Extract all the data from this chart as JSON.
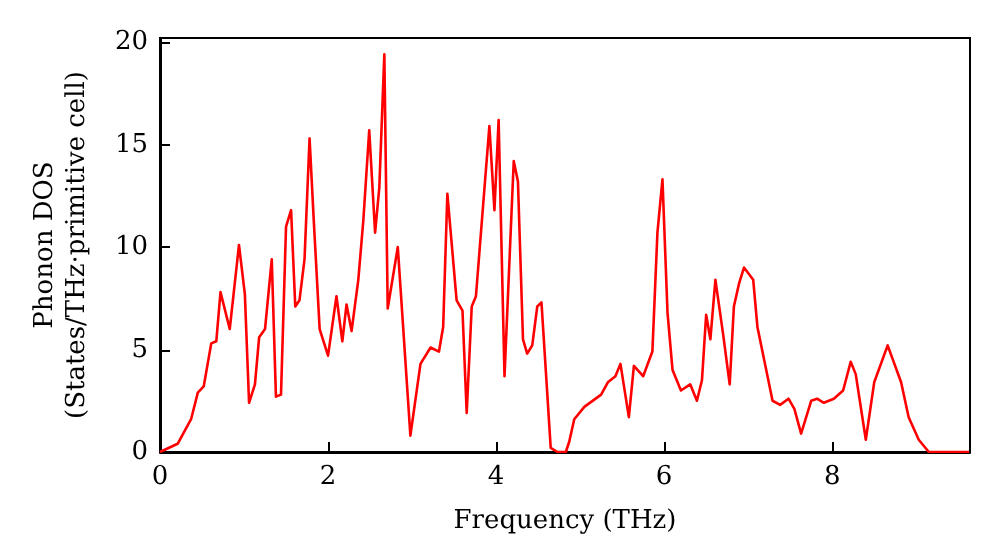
{
  "chart_data": {
    "type": "line",
    "xlabel": "Frequency (THz)",
    "ylabel": "Phonon DOS\n(States/THz·primitive cell)",
    "xlim": [
      0,
      9.64
    ],
    "ylim": [
      0,
      20.2
    ],
    "xticks": [
      0,
      2,
      4,
      6,
      8
    ],
    "yticks": [
      0,
      5,
      10,
      15,
      20
    ],
    "grid": false,
    "marker": "none",
    "line_style": "solid",
    "series": [
      {
        "color": "#ff0000",
        "x": [
          0,
          0.21,
          0.37,
          0.45,
          0.52,
          0.61,
          0.67,
          0.72,
          0.83,
          0.94,
          1.01,
          1.06,
          1.13,
          1.18,
          1.25,
          1.33,
          1.38,
          1.44,
          1.5,
          1.56,
          1.61,
          1.66,
          1.72,
          1.78,
          1.83,
          1.9,
          2.0,
          2.1,
          2.17,
          2.22,
          2.28,
          2.36,
          2.42,
          2.49,
          2.56,
          2.61,
          2.67,
          2.71,
          2.83,
          2.98,
          3.1,
          3.22,
          3.32,
          3.37,
          3.42,
          3.53,
          3.6,
          3.65,
          3.71,
          3.76,
          3.92,
          3.98,
          4.03,
          4.1,
          4.21,
          4.26,
          4.32,
          4.37,
          4.43,
          4.49,
          4.54,
          4.65,
          4.73,
          4.83,
          4.87,
          4.93,
          5.05,
          5.25,
          5.33,
          5.42,
          5.48,
          5.58,
          5.64,
          5.75,
          5.86,
          5.92,
          5.98,
          6.04,
          6.1,
          6.2,
          6.31,
          6.39,
          6.45,
          6.5,
          6.55,
          6.61,
          6.7,
          6.78,
          6.83,
          6.89,
          6.95,
          7.06,
          7.11,
          7.19,
          7.29,
          7.38,
          7.48,
          7.55,
          7.63,
          7.75,
          7.82,
          7.9,
          8.02,
          8.13,
          8.22,
          8.28,
          8.4,
          8.5,
          8.66,
          8.82,
          8.91,
          9.03,
          9.15,
          9.63
        ],
        "values": [
          0,
          0.4,
          1.6,
          2.9,
          3.2,
          5.3,
          5.4,
          7.8,
          6.0,
          10.1,
          7.7,
          2.4,
          3.3,
          5.6,
          6.0,
          9.4,
          2.7,
          2.8,
          11.0,
          11.8,
          7.1,
          7.4,
          9.4,
          15.3,
          11.3,
          6.0,
          4.7,
          7.6,
          5.4,
          7.2,
          5.9,
          8.4,
          11.3,
          15.7,
          10.7,
          12.9,
          19.4,
          7.0,
          10.0,
          0.8,
          4.3,
          5.1,
          4.9,
          6.1,
          12.6,
          7.4,
          6.9,
          1.9,
          7.1,
          7.6,
          15.9,
          11.8,
          16.2,
          3.7,
          14.2,
          13.2,
          5.5,
          4.8,
          5.2,
          7.1,
          7.3,
          0.2,
          0,
          0,
          0.5,
          1.6,
          2.2,
          2.8,
          3.4,
          3.7,
          4.3,
          1.7,
          4.2,
          3.7,
          4.9,
          10.7,
          13.3,
          6.8,
          4.0,
          3.0,
          3.3,
          2.5,
          3.5,
          6.7,
          5.5,
          8.4,
          5.8,
          3.3,
          7.1,
          8.2,
          9.0,
          8.4,
          6.1,
          4.5,
          2.5,
          2.3,
          2.6,
          2.1,
          0.9,
          2.5,
          2.6,
          2.4,
          2.6,
          3.0,
          4.4,
          3.8,
          0.6,
          3.4,
          5.2,
          3.4,
          1.7,
          0.6,
          0,
          0
        ]
      }
    ]
  }
}
